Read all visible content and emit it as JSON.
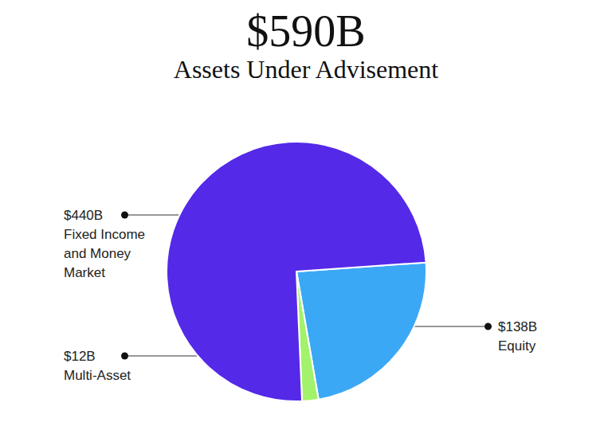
{
  "chart_data": {
    "type": "pie",
    "title": "$590B",
    "subtitle": "Assets Under Advisement",
    "categories": [
      "Equity",
      "Multi-Asset",
      "Fixed Income and Money Market"
    ],
    "values": [
      138,
      12,
      440
    ],
    "value_labels": [
      "$138B",
      "$12B",
      "$440B"
    ],
    "colors": [
      "#3ba8f6",
      "#a2f26b",
      "#5429e8"
    ],
    "data_labels": true
  }
}
